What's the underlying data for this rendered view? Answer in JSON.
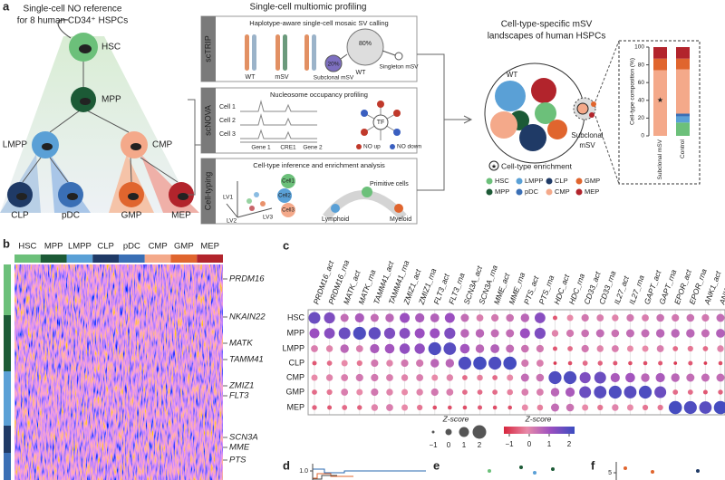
{
  "panel_a": {
    "label": "a",
    "title": [
      "Single-cell NO reference",
      "for 8 human CD34⁺ HSPCs"
    ],
    "nodes": [
      "HSC",
      "MPP",
      "LMPP",
      "CMP",
      "CLP",
      "pDC",
      "GMP",
      "MEP"
    ],
    "profiling": {
      "title": "Single-cell multiomic profiling",
      "sctrip": {
        "tab": "scTRIP",
        "heading": "Haplotype-aware single-cell mosaic SV calling",
        "labels": [
          "WT",
          "mSV",
          "80%",
          "20%",
          "WT",
          "Subclonal mSV",
          "Singleton mSV"
        ]
      },
      "scnova": {
        "tab": "scNOVA",
        "heading": "Nucleosome occupancy profiling",
        "cells": [
          "Cell 1",
          "Cell 2",
          "Cell 3"
        ],
        "genes": [
          "Gene 1",
          "CRE1",
          "Gene 2"
        ],
        "tf": "TF",
        "legend": [
          "NO up",
          "NO down"
        ]
      },
      "celltyping": {
        "tab": "Cell-typing",
        "heading": "Cell-type inference and enrichment analysis",
        "cells": [
          "Cell1",
          "Cell2",
          "Cell3"
        ],
        "axes": [
          "LV1",
          "LV2",
          "LV3"
        ],
        "labels": [
          "Primitive cells",
          "Lymphoid",
          "Myeloid"
        ]
      }
    },
    "landscape": {
      "title": [
        "Cell-type-specific mSV",
        "landscapes of human HSPCs"
      ],
      "wt": "WT",
      "subclonal": [
        "Subclonal",
        "mSV"
      ],
      "enrichment": "Cell-type enrichment"
    },
    "composition": {
      "type": "stacked_bar",
      "y_label": "Cell-type composition (%)",
      "categories": [
        "Subclonal mSV",
        "Control"
      ],
      "ylim": [
        0,
        100
      ],
      "yticks": [
        0,
        20,
        40,
        60,
        80,
        100
      ],
      "series": [
        {
          "name": "HSC",
          "color": "#6cc07a",
          "values": [
            0,
            15
          ]
        },
        {
          "name": "MPP",
          "color": "#1c5a36",
          "values": [
            0,
            0
          ]
        },
        {
          "name": "LMPP",
          "color": "#5aa0d6",
          "values": [
            0,
            7
          ]
        },
        {
          "name": "pDC",
          "color": "#3a6fb5",
          "values": [
            0,
            3
          ]
        },
        {
          "name": "CLP",
          "color": "#1f3a66",
          "values": [
            0,
            0
          ]
        },
        {
          "name": "CMP",
          "color": "#f4a98a",
          "values": [
            74,
            50
          ]
        },
        {
          "name": "GMP",
          "color": "#e0652e",
          "values": [
            13,
            12
          ]
        },
        {
          "name": "MEP",
          "color": "#b2242c",
          "values": [
            13,
            13
          ]
        }
      ]
    }
  },
  "panel_b": {
    "label": "b",
    "columns": [
      {
        "name": "HSC",
        "color": "#6cc07a"
      },
      {
        "name": "MPP",
        "color": "#1c5a36"
      },
      {
        "name": "LMPP",
        "color": "#5aa0d6"
      },
      {
        "name": "CLP",
        "color": "#1f3a66"
      },
      {
        "name": "pDC",
        "color": "#3a6fb5"
      },
      {
        "name": "CMP",
        "color": "#f4a98a"
      },
      {
        "name": "GMP",
        "color": "#e0652e"
      },
      {
        "name": "MEP",
        "color": "#b2242c"
      }
    ],
    "genes": [
      {
        "name": "PRDM16",
        "color": "#6cc07a"
      },
      {
        "name": "NKAIN22",
        "color": "#6cc07a"
      },
      {
        "name": "MATK",
        "color": "#1c3a2c"
      },
      {
        "name": "TAMM41",
        "color": "#1c3a2c"
      },
      {
        "name": "ZMIZ1",
        "color": "#5aa0d6"
      },
      {
        "name": "FLT3",
        "color": "#5aa0d6"
      },
      {
        "name": "SCN3A",
        "color": "#1f3a66"
      },
      {
        "name": "MME",
        "color": "#1f3a66"
      },
      {
        "name": "PTS",
        "color": "#3a6fb5"
      }
    ]
  },
  "panel_c": {
    "label": "c",
    "type": "dot_matrix",
    "columns": [
      "PRDM16_act",
      "PRDM16_rna",
      "MATK_act",
      "MATK_rna",
      "TAMM41_act",
      "TAMM41_rna",
      "ZMIZ1_act",
      "ZMIZ1_rna",
      "FLT3_act",
      "FLT3_rna",
      "SCN3A_act",
      "SCN3A_rna",
      "MME_act",
      "MME_rna",
      "PTS_act",
      "PTS_rna",
      "HDC_act",
      "HDC_rna",
      "CD33_act",
      "CD33_rna",
      "IL27_act",
      "IL27_rna",
      "GAPT_act",
      "GAPT_rna",
      "EPOR_act",
      "EPOR_rna",
      "ANK1_act",
      "ANK1_rna"
    ],
    "rows": [
      "HSC",
      "MPP",
      "LMPP",
      "CLP",
      "CMP",
      "GMP",
      "MEP"
    ],
    "values": [
      [
        1.5,
        1.3,
        0.5,
        0.8,
        0.5,
        0.6,
        1.0,
        0.8,
        0.7,
        1.0,
        0.5,
        0.2,
        0.3,
        0.4,
        0.6,
        1.2,
        -0.5,
        0.0,
        0.3,
        0.2,
        0.1,
        0.3,
        0.2,
        0.4,
        0.3,
        0.4,
        0.3,
        0.5
      ],
      [
        1.0,
        1.2,
        1.5,
        1.8,
        1.6,
        1.3,
        1.2,
        1.0,
        1.0,
        1.3,
        0.6,
        0.6,
        0.5,
        0.5,
        1.0,
        1.3,
        0.1,
        0.3,
        0.4,
        0.5,
        0.4,
        0.5,
        0.5,
        0.6,
        0.6,
        0.6,
        0.5,
        0.7
      ],
      [
        0.2,
        0.1,
        0.6,
        0.2,
        0.8,
        0.9,
        1.1,
        1.1,
        1.8,
        1.7,
        0.9,
        0.6,
        0.7,
        0.5,
        0.4,
        0.3,
        -0.5,
        -0.3,
        0.3,
        0.1,
        0.2,
        0.0,
        0.0,
        0.2,
        -0.3,
        -0.2,
        -0.3,
        0.1
      ],
      [
        -0.5,
        -0.3,
        0.0,
        -0.2,
        0.3,
        0.1,
        0.3,
        0.3,
        0.6,
        0.6,
        1.8,
        1.9,
        1.8,
        1.9,
        0.3,
        0.2,
        -0.8,
        -0.6,
        -0.3,
        -0.4,
        -0.5,
        -0.6,
        -0.6,
        -0.5,
        -0.8,
        -0.5,
        -0.8,
        -0.6
      ],
      [
        0.0,
        0.1,
        0.2,
        0.3,
        0.3,
        0.2,
        0.1,
        0.2,
        0.0,
        0.1,
        -0.3,
        -0.1,
        -0.3,
        0.0,
        0.5,
        0.4,
        1.8,
        1.8,
        1.3,
        1.5,
        0.8,
        0.9,
        0.6,
        0.8,
        0.6,
        0.5,
        0.5,
        0.5
      ],
      [
        -0.3,
        -0.2,
        0.2,
        0.0,
        0.3,
        0.1,
        0.0,
        0.1,
        0.3,
        0.2,
        -0.3,
        -0.3,
        -0.3,
        -0.1,
        0.2,
        0.2,
        0.6,
        0.8,
        1.5,
        1.7,
        1.8,
        1.7,
        1.8,
        1.5,
        -0.3,
        -0.3,
        -0.5,
        -0.4
      ],
      [
        -0.4,
        -0.5,
        -0.3,
        -0.4,
        0.1,
        0.2,
        0.0,
        -0.2,
        -0.6,
        -0.6,
        -0.6,
        -0.5,
        -0.6,
        -0.6,
        0.0,
        -0.1,
        0.5,
        0.4,
        0.0,
        -0.2,
        0.1,
        0.0,
        -0.2,
        -0.2,
        1.9,
        1.8,
        1.7,
        1.9
      ]
    ],
    "zlim": [
      -1,
      2
    ],
    "size_legend": {
      "title": "Z-score",
      "ticks": [
        {
          "value": -1,
          "label": "−1"
        },
        0,
        1,
        2
      ]
    },
    "color_legend": {
      "title": "Z-score",
      "ticks": [
        {
          "value": -1,
          "label": "−1"
        },
        0,
        1,
        2
      ]
    }
  },
  "panel_d": {
    "label": "d",
    "ytick": {
      "value": 1,
      "label": "1.0"
    }
  },
  "panel_e": {
    "label": "e"
  },
  "panel_f": {
    "label": "f",
    "ytick": 5
  }
}
